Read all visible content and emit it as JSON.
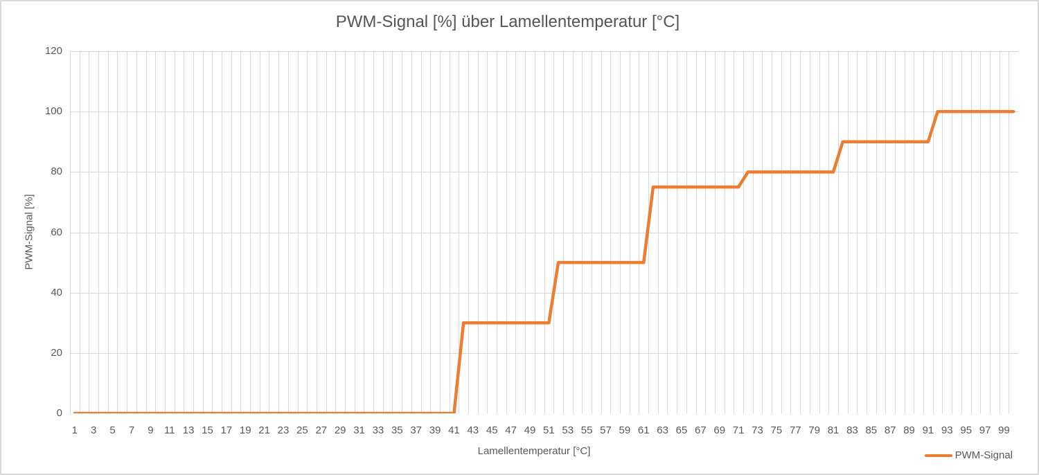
{
  "chart": {
    "title": "PWM-Signal [%] über Lamellentemperatur [°C]",
    "x_axis_title": "Lamellentemperatur [°C]",
    "y_axis_title": "PWM-Signal [%]",
    "legend": {
      "label": "PWM-Signal"
    }
  },
  "chart_data": {
    "type": "line",
    "title": "PWM-Signal [%] über Lamellentemperatur [°C]",
    "xlabel": "Lamellentemperatur [°C]",
    "ylabel": "PWM-Signal [%]",
    "ylim": [
      0,
      120
    ],
    "grid": "both",
    "legend_position": "bottom-right",
    "x": [
      1,
      2,
      3,
      4,
      5,
      6,
      7,
      8,
      9,
      10,
      11,
      12,
      13,
      14,
      15,
      16,
      17,
      18,
      19,
      20,
      21,
      22,
      23,
      24,
      25,
      26,
      27,
      28,
      29,
      30,
      31,
      32,
      33,
      34,
      35,
      36,
      37,
      38,
      39,
      40,
      41,
      42,
      43,
      44,
      45,
      46,
      47,
      48,
      49,
      50,
      51,
      52,
      53,
      54,
      55,
      56,
      57,
      58,
      59,
      60,
      61,
      62,
      63,
      64,
      65,
      66,
      67,
      68,
      69,
      70,
      71,
      72,
      73,
      74,
      75,
      76,
      77,
      78,
      79,
      80,
      81,
      82,
      83,
      84,
      85,
      86,
      87,
      88,
      89,
      90,
      91,
      92,
      93,
      94,
      95,
      96,
      97,
      98,
      99,
      100
    ],
    "series": [
      {
        "name": "PWM-Signal",
        "color": "#ED7D31",
        "values": [
          0,
          0,
          0,
          0,
          0,
          0,
          0,
          0,
          0,
          0,
          0,
          0,
          0,
          0,
          0,
          0,
          0,
          0,
          0,
          0,
          0,
          0,
          0,
          0,
          0,
          0,
          0,
          0,
          0,
          0,
          0,
          0,
          0,
          0,
          0,
          0,
          0,
          0,
          0,
          0,
          0,
          30,
          30,
          30,
          30,
          30,
          30,
          30,
          30,
          30,
          30,
          50,
          50,
          50,
          50,
          50,
          50,
          50,
          50,
          50,
          50,
          75,
          75,
          75,
          75,
          75,
          75,
          75,
          75,
          75,
          75,
          80,
          80,
          80,
          80,
          80,
          80,
          80,
          80,
          80,
          80,
          90,
          90,
          90,
          90,
          90,
          90,
          90,
          90,
          90,
          90,
          100,
          100,
          100,
          100,
          100,
          100,
          100,
          100,
          100
        ]
      }
    ],
    "x_tick_labels": [
      1,
      3,
      5,
      7,
      9,
      11,
      13,
      15,
      17,
      19,
      21,
      23,
      25,
      27,
      29,
      31,
      33,
      35,
      37,
      39,
      41,
      43,
      45,
      47,
      49,
      51,
      53,
      55,
      57,
      59,
      61,
      63,
      65,
      67,
      69,
      71,
      73,
      75,
      77,
      79,
      81,
      83,
      85,
      87,
      89,
      91,
      93,
      95,
      97,
      99
    ],
    "y_ticks": [
      0,
      20,
      40,
      60,
      80,
      100,
      120
    ],
    "colors": {
      "series": "#ED7D31",
      "gridline": "#D9D9D9",
      "axis_line": "#C6C6C6",
      "text": "#595959"
    }
  }
}
